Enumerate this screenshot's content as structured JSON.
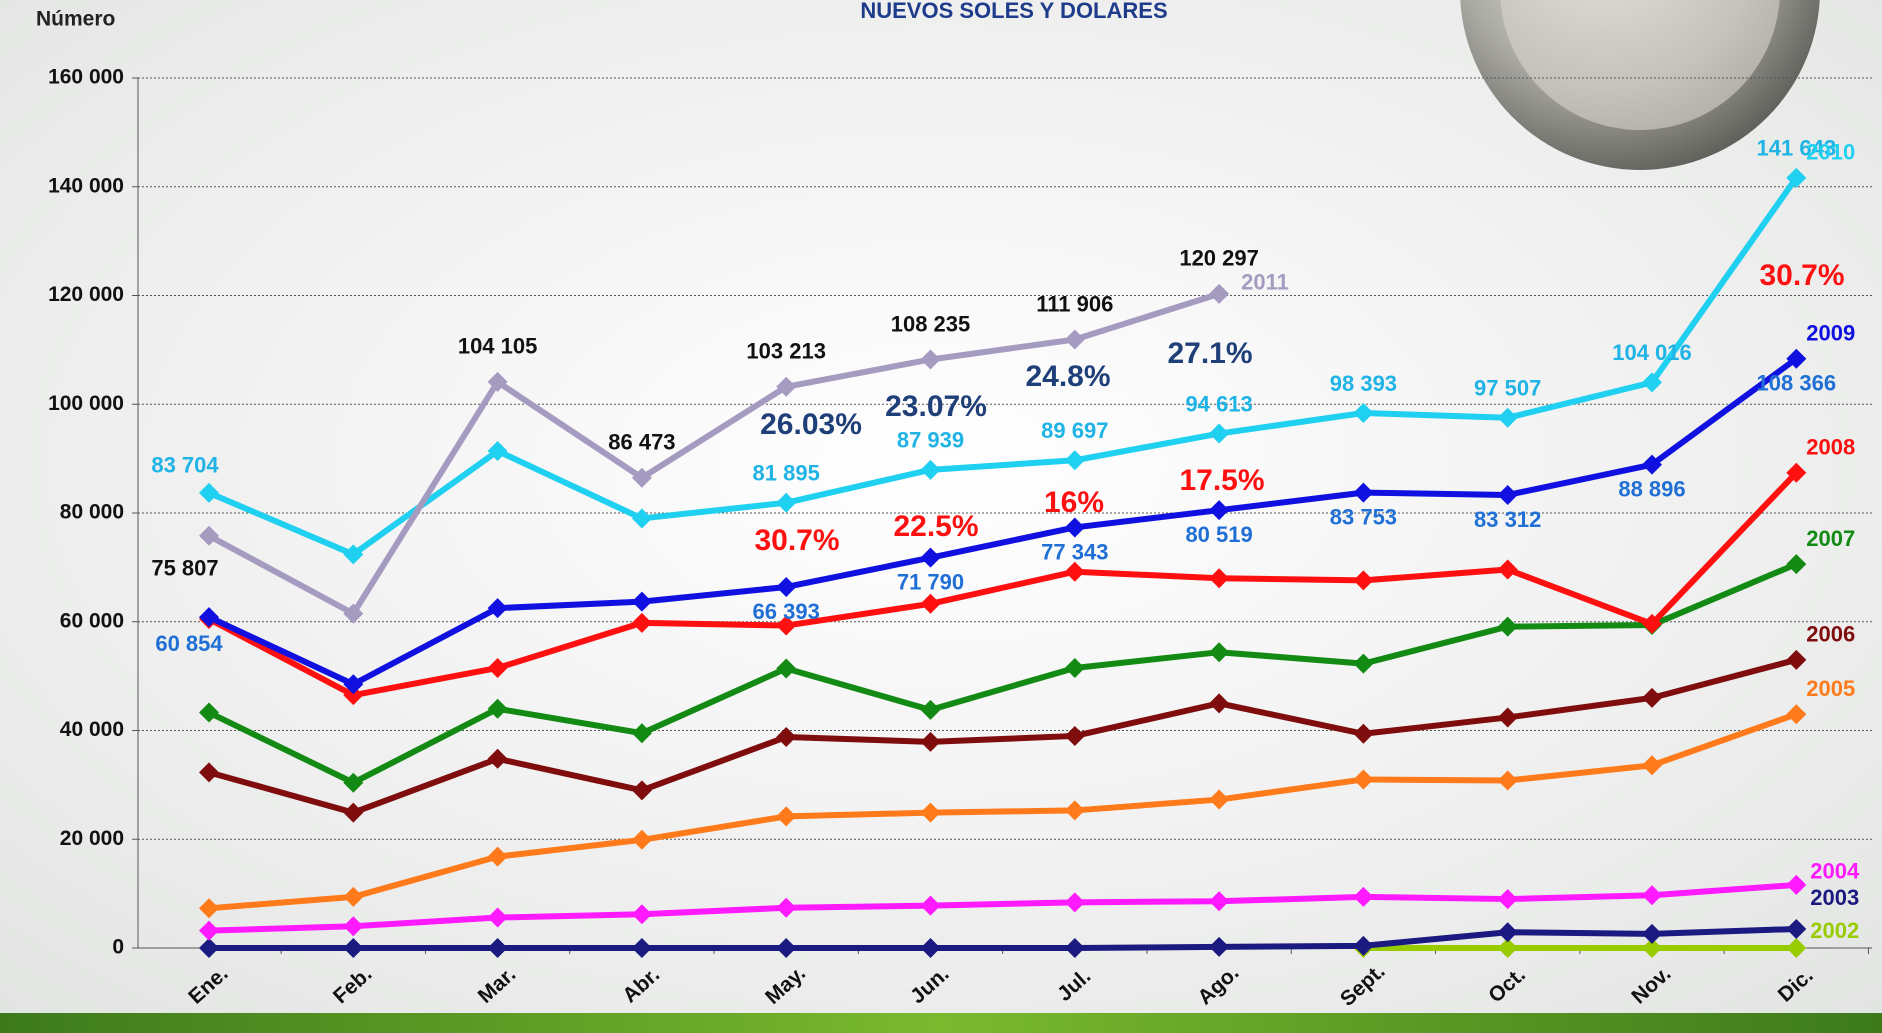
{
  "chart_data": {
    "type": "line",
    "title": "NUEVOS SOLES Y  DOLARES",
    "y_label": "Número",
    "categories": [
      "Ene.",
      "Feb.",
      "Mar.",
      "Abr.",
      "May.",
      "Jun.",
      "Jul.",
      "Ago.",
      "Sept.",
      "Oct.",
      "Nov.",
      "Dic."
    ],
    "ylim": [
      0,
      160000
    ],
    "yticks": [
      0,
      {
        "value": 20000,
        "label": "20 000"
      },
      {
        "value": 40000,
        "label": "40 000"
      },
      {
        "value": 60000,
        "label": "60 000"
      },
      {
        "value": 80000,
        "label": "80 000"
      },
      {
        "value": 100000,
        "label": "100 000"
      },
      {
        "value": 120000,
        "label": "120 000"
      },
      {
        "value": 140000,
        "label": "140 000"
      },
      {
        "value": 160000,
        "label": "160 000"
      }
    ],
    "grid": true,
    "series": [
      {
        "name": "2002",
        "color": "#99cc00",
        "values": [
          null,
          null,
          null,
          null,
          null,
          null,
          null,
          null,
          0,
          0,
          0,
          0
        ]
      },
      {
        "name": "2003",
        "color": "#1a1a80",
        "values": [
          0,
          0,
          0,
          0,
          0,
          0,
          0,
          200,
          400,
          2900,
          2600,
          3500
        ]
      },
      {
        "name": "2004",
        "color": "#ff1aff",
        "values": [
          3200,
          4000,
          5600,
          6200,
          7400,
          7800,
          8400,
          8600,
          9400,
          9000,
          9700,
          11600
        ]
      },
      {
        "name": "2005",
        "color": "#ff7a1a",
        "values": [
          7300,
          9400,
          16800,
          19900,
          24200,
          24900,
          25300,
          27300,
          31000,
          30800,
          33600,
          43000
        ]
      },
      {
        "name": "2006",
        "color": "#7f0d0d",
        "values": [
          32300,
          24900,
          34800,
          29000,
          38800,
          37900,
          39000,
          45000,
          39400,
          42400,
          46000,
          53000
        ]
      },
      {
        "name": "2007",
        "color": "#138a13",
        "values": [
          43300,
          30400,
          44000,
          39500,
          51400,
          43800,
          51500,
          54400,
          52300,
          59100,
          59400,
          70600
        ]
      },
      {
        "name": "2008",
        "color": "#ff1010",
        "values": [
          60500,
          46500,
          51500,
          59800,
          59300,
          63300,
          69200,
          68000,
          67600,
          69600,
          59600,
          87400
        ]
      },
      {
        "name": "2009",
        "color": "#1010e0",
        "label_color": "#1f6fd6",
        "values": [
          60854,
          48500,
          62500,
          63700,
          66393,
          71790,
          77343,
          80519,
          83753,
          83312,
          88896,
          108366
        ],
        "value_labels": [
          "60 854",
          null,
          null,
          null,
          "66 393",
          "71 790",
          "77 343",
          "80 519",
          "83 753",
          "83 312",
          "88 896",
          "108 366"
        ]
      },
      {
        "name": "2010",
        "color": "#1fd0f0",
        "label_color": "#1fb3e6",
        "values": [
          83704,
          72400,
          91400,
          79000,
          81895,
          87939,
          89697,
          94613,
          98393,
          97507,
          104016,
          141643
        ],
        "value_labels": [
          "83 704",
          null,
          null,
          null,
          "81 895",
          "87 939",
          "89 697",
          "94 613",
          "98 393",
          "97 507",
          "104 016",
          "141 643"
        ]
      },
      {
        "name": "2011",
        "color": "#a59bc0",
        "label_color": "#111111",
        "values": [
          75807,
          61500,
          104105,
          86473,
          103213,
          108235,
          111906,
          120297,
          null,
          null,
          null,
          null
        ],
        "value_labels": [
          "75 807",
          null,
          "104 105",
          "86 473",
          "103 213",
          "108 235",
          "111 906",
          "120 297",
          null,
          null,
          null,
          null
        ]
      }
    ],
    "annotations": [
      {
        "text": "26.03%",
        "color": "#1f3f78"
      },
      {
        "text": "23.07%",
        "color": "#1f3f78"
      },
      {
        "text": "24.8%",
        "color": "#1f3f78"
      },
      {
        "text": "27.1%",
        "color": "#1f3f78"
      },
      {
        "text": "30.7%",
        "color": "#ff1010"
      },
      {
        "text": "22.5%",
        "color": "#ff1010"
      },
      {
        "text": "16%",
        "color": "#ff1010"
      },
      {
        "text": "17.5%",
        "color": "#ff1010"
      },
      {
        "text": "30.7%",
        "color": "#ff1010"
      }
    ]
  }
}
